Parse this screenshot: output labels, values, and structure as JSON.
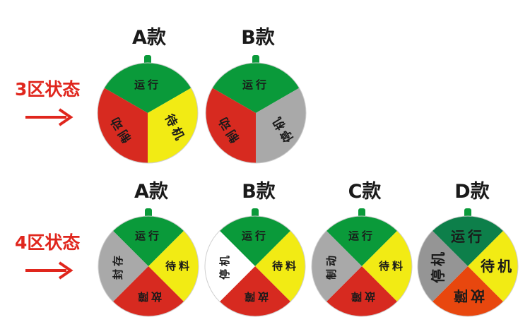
{
  "row3": {
    "label": "3区状态",
    "wheels": [
      {
        "title": "A款",
        "segments": [
          {
            "color": "#0a9a3a",
            "text": "运行"
          },
          {
            "color": "#f2eb14",
            "text": "待机"
          },
          {
            "color": "#d72a20",
            "text": "制动"
          }
        ]
      },
      {
        "title": "B款",
        "segments": [
          {
            "color": "#0a9a3a",
            "text": "运行"
          },
          {
            "color": "#a9a9a9",
            "text": "停机"
          },
          {
            "color": "#d72a20",
            "text": "制动"
          }
        ]
      }
    ]
  },
  "row4": {
    "label": "4区状态",
    "wheels": [
      {
        "title": "A款",
        "segments": [
          {
            "color": "#0a9a3a",
            "text": "运行"
          },
          {
            "color": "#f2eb14",
            "text": "待料"
          },
          {
            "color": "#d72a20",
            "text": "故障"
          },
          {
            "color": "#a9a9a9",
            "text": "封存"
          }
        ]
      },
      {
        "title": "B款",
        "segments": [
          {
            "color": "#0a9a3a",
            "text": "运行"
          },
          {
            "color": "#f2eb14",
            "text": "待料"
          },
          {
            "color": "#d72a20",
            "text": "故障"
          },
          {
            "color": "#ffffff",
            "text": "停机"
          }
        ]
      },
      {
        "title": "C款",
        "segments": [
          {
            "color": "#0a9a3a",
            "text": "运行"
          },
          {
            "color": "#f2eb14",
            "text": "待料"
          },
          {
            "color": "#d72a20",
            "text": "故障"
          },
          {
            "color": "#a9a9a9",
            "text": "制动"
          }
        ]
      },
      {
        "title": "D款",
        "segments": [
          {
            "color": "#0d7f4a",
            "text": "运行"
          },
          {
            "color": "#f2eb14",
            "text": "待机"
          },
          {
            "color": "#e8470e",
            "text": "故障"
          },
          {
            "color": "#959595",
            "text": "停机"
          }
        ]
      }
    ]
  }
}
